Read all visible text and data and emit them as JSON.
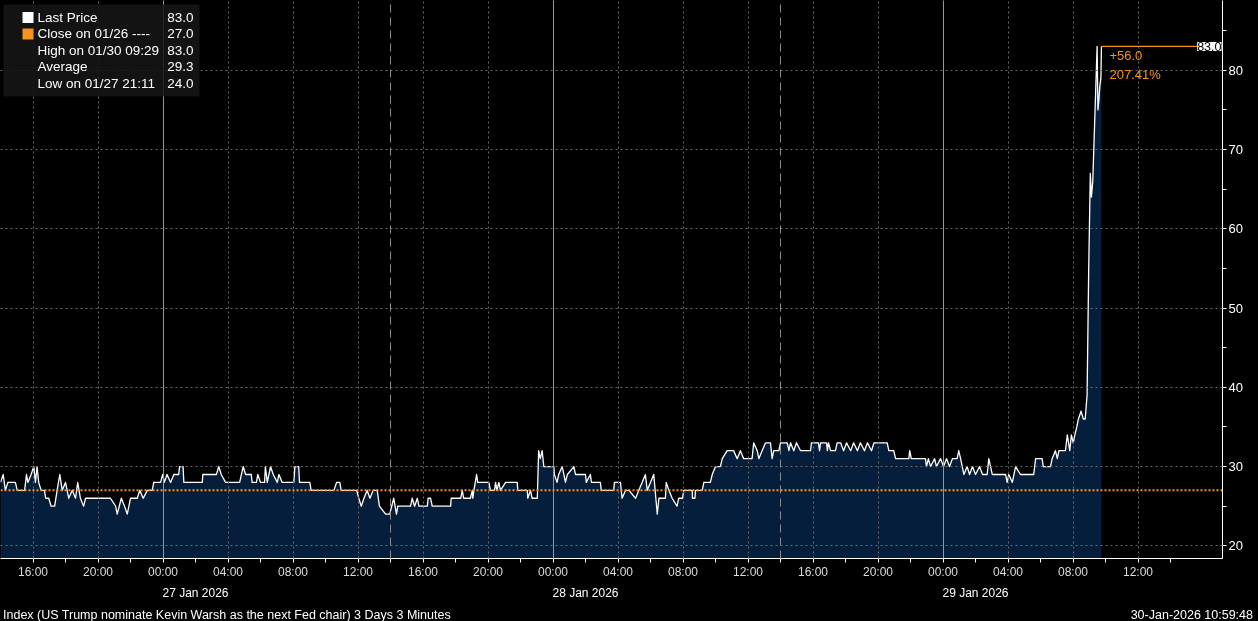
{
  "chart_data": {
    "type": "area",
    "xlim": [
      "2026-01-27T14:00",
      "2026-01-30T17:12"
    ],
    "ylim": [
      18.4,
      88.8
    ],
    "x": [
      "2026-01-27T14:00",
      "2026-01-27T14:10",
      "2026-01-27T14:18",
      "2026-01-27T14:27",
      "2026-01-27T14:55",
      "2026-01-27T15:02",
      "2026-01-27T15:29",
      "2026-01-27T15:36",
      "2026-01-27T15:41",
      "2026-01-27T15:53",
      "2026-01-27T16:03",
      "2026-01-27T16:09",
      "2026-01-27T16:15",
      "2026-01-27T16:21",
      "2026-01-27T16:30",
      "2026-01-27T16:42",
      "2026-01-27T16:47",
      "2026-01-27T16:58",
      "2026-01-27T17:07",
      "2026-01-27T17:20",
      "2026-01-27T17:29",
      "2026-01-27T17:39",
      "2026-01-27T17:48",
      "2026-01-27T18:00",
      "2026-01-27T18:12",
      "2026-01-27T18:25",
      "2026-01-27T18:37",
      "2026-01-27T18:45",
      "2026-01-27T18:55",
      "2026-01-27T19:07",
      "2026-01-27T19:14",
      "2026-01-27T20:46",
      "2026-01-27T21:05",
      "2026-01-27T21:11",
      "2026-01-27T21:26",
      "2026-01-27T21:38",
      "2026-01-27T21:48",
      "2026-01-27T22:00",
      "2026-01-27T22:25",
      "2026-01-27T22:34",
      "2026-01-27T22:47",
      "2026-01-27T23:02",
      "2026-01-27T23:20",
      "2026-01-27T23:26",
      "2026-01-27T23:51",
      "2026-01-27T23:59",
      "2026-01-28T00:05",
      "2026-01-28T00:15",
      "2026-01-28T00:28",
      "2026-01-28T00:40",
      "2026-01-28T00:58",
      "2026-01-28T01:01",
      "2026-01-28T01:14",
      "2026-01-28T01:17",
      "2026-01-28T02:25",
      "2026-01-28T02:27",
      "2026-01-28T03:17",
      "2026-01-28T03:26",
      "2026-01-28T03:35",
      "2026-01-28T03:51",
      "2026-01-28T04:43",
      "2026-01-28T04:56",
      "2026-01-28T05:05",
      "2026-01-28T05:26",
      "2026-01-28T05:29",
      "2026-01-28T05:45",
      "2026-01-28T05:50",
      "2026-01-28T06:00",
      "2026-01-28T06:15",
      "2026-01-28T06:18",
      "2026-01-28T06:25",
      "2026-01-28T06:37",
      "2026-01-28T06:47",
      "2026-01-28T07:02",
      "2026-01-28T07:08",
      "2026-01-28T07:20",
      "2026-01-28T08:03",
      "2026-01-28T08:07",
      "2026-01-28T08:21",
      "2026-01-28T08:24",
      "2026-01-28T09:02",
      "2026-01-28T09:07",
      "2026-01-28T10:31",
      "2026-01-28T10:41",
      "2026-01-28T10:53",
      "2026-01-28T10:58",
      "2026-01-28T11:55",
      "2026-01-28T12:03",
      "2026-01-28T12:12",
      "2026-01-28T12:22",
      "2026-01-28T12:34",
      "2026-01-28T12:44",
      "2026-01-28T12:56",
      "2026-01-28T13:11",
      "2026-01-28T13:19",
      "2026-01-28T13:42",
      "2026-01-28T13:57",
      "2026-01-28T14:12",
      "2026-01-28T14:22",
      "2026-01-28T14:27",
      "2026-01-28T15:14",
      "2026-01-28T15:20",
      "2026-01-28T15:29",
      "2026-01-28T15:39",
      "2026-01-28T15:45",
      "2026-01-28T16:16",
      "2026-01-28T16:19",
      "2026-01-28T16:28",
      "2026-01-28T16:34",
      "2026-01-28T17:42",
      "2026-01-28T17:44",
      "2026-01-28T18:19",
      "2026-01-28T18:25",
      "2026-01-28T18:30",
      "2026-01-28T18:55",
      "2026-01-28T19:02",
      "2026-01-28T19:04",
      "2026-01-28T19:08",
      "2026-01-28T19:18",
      "2026-01-28T19:22",
      "2026-01-28T20:03",
      "2026-01-28T20:09",
      "2026-01-28T20:24",
      "2026-01-28T20:28",
      "2026-01-28T20:33",
      "2026-01-28T20:40",
      "2026-01-28T20:46",
      "2026-01-28T21:05",
      "2026-01-28T21:48",
      "2026-01-28T21:50",
      "2026-01-28T22:25",
      "2026-01-28T22:27",
      "2026-01-28T22:37",
      "2026-01-28T22:43",
      "2026-01-28T23:02",
      "2026-01-28T23:07",
      "2026-01-28T23:13",
      "2026-01-28T23:20",
      "2026-01-28T23:26",
      "2026-01-29T00:03",
      "2026-01-29T00:05",
      "2026-01-29T00:15",
      "2026-01-29T00:21",
      "2026-01-29T00:34",
      "2026-01-29T00:40",
      "2026-01-29T00:46",
      "2026-01-29T00:53",
      "2026-01-29T01:17",
      "2026-01-29T01:23",
      "2026-01-29T02:00",
      "2026-01-29T02:03",
      "2026-01-29T02:18",
      "2026-01-29T02:22",
      "2026-01-29T02:55",
      "2026-01-29T02:58",
      "2026-01-29T03:44",
      "2026-01-29T03:47",
      "2026-01-29T04:09",
      "2026-01-29T04:15",
      "2026-01-29T04:28",
      "2026-01-29T04:40",
      "2026-01-29T05:05",
      "2026-01-29T05:17",
      "2026-01-29T05:29",
      "2026-01-29T05:41",
      "2026-01-29T05:48",
      "2026-01-29T06:12",
      "2026-01-29T06:25",
      "2026-01-29T06:31",
      "2026-01-29T06:55",
      "2026-01-29T06:58",
      "2026-01-29T07:08",
      "2026-01-29T07:20",
      "2026-01-29T07:38",
      "2026-01-29T07:44",
      "2026-01-29T07:58",
      "2026-01-29T08:03",
      "2026-01-29T08:34",
      "2026-01-29T08:35",
      "2026-01-29T08:44",
      "2026-01-29T08:46",
      "2026-01-29T09:11",
      "2026-01-29T09:17",
      "2026-01-29T09:41",
      "2026-01-29T09:48",
      "2026-01-29T10:00",
      "2026-01-29T10:18",
      "2026-01-29T10:25",
      "2026-01-29T10:43",
      "2026-01-29T11:07",
      "2026-01-29T11:20",
      "2026-01-29T11:32",
      "2026-01-29T11:44",
      "2026-01-29T12:15",
      "2026-01-29T12:21",
      "2026-01-29T12:34",
      "2026-01-29T12:40",
      "2026-01-29T12:52",
      "2026-01-29T13:05",
      "2026-01-29T13:23",
      "2026-01-29T13:29",
      "2026-01-29T13:35",
      "2026-01-29T13:54",
      "2026-01-29T14:00",
      "2026-01-29T14:25",
      "2026-01-29T14:31",
      "2026-01-29T14:37",
      "2026-01-29T14:49",
      "2026-01-29T14:59",
      "2026-01-29T15:14",
      "2026-01-29T15:51",
      "2026-01-29T15:54",
      "2026-01-29T16:20",
      "2026-01-29T16:24",
      "2026-01-29T16:28",
      "2026-01-29T16:50",
      "2026-01-29T16:53",
      "2026-01-29T16:57",
      "2026-01-29T17:05",
      "2026-01-29T17:23",
      "2026-01-29T17:29",
      "2026-01-29T17:42",
      "2026-01-29T17:53",
      "2026-01-29T18:04",
      "2026-01-29T18:19",
      "2026-01-29T18:30",
      "2026-01-29T18:44",
      "2026-01-29T18:55",
      "2026-01-29T19:10",
      "2026-01-29T19:21",
      "2026-01-29T19:36",
      "2026-01-29T19:45",
      "2026-01-29T20:34",
      "2026-01-29T20:40",
      "2026-01-29T20:58",
      "2026-01-29T21:05",
      "2026-01-29T21:54",
      "2026-01-29T21:57",
      "2026-01-29T22:03",
      "2026-01-29T22:55",
      "2026-01-29T22:59",
      "2026-01-29T23:06",
      "2026-01-29T23:14",
      "2026-01-29T23:29",
      "2026-01-29T23:36",
      "2026-01-29T23:51",
      "2026-01-30T00:02",
      "2026-01-30T00:13",
      "2026-01-30T00:24",
      "2026-01-30T00:35",
      "2026-01-30T00:52",
      "2026-01-30T00:58",
      "2026-01-30T01:05",
      "2026-01-30T01:17",
      "2026-01-30T01:29",
      "2026-01-30T01:38",
      "2026-01-30T01:49",
      "2026-01-30T02:00",
      "2026-01-30T02:15",
      "2026-01-30T02:26",
      "2026-01-30T02:43",
      "2026-01-30T02:49",
      "2026-01-30T03:02",
      "2026-01-30T03:51",
      "2026-01-30T03:57",
      "2026-01-30T04:03",
      "2026-01-30T04:16",
      "2026-01-30T04:28",
      "2026-01-30T04:46",
      "2026-01-30T05:35",
      "2026-01-30T05:42",
      "2026-01-30T06:06",
      "2026-01-30T06:10",
      "2026-01-30T06:37",
      "2026-01-30T06:43",
      "2026-01-30T06:55",
      "2026-01-30T07:02",
      "2026-01-30T07:08",
      "2026-01-30T07:32",
      "2026-01-30T07:39",
      "2026-01-30T07:48",
      "2026-01-30T07:54",
      "2026-01-30T08:01",
      "2026-01-30T08:07",
      "2026-01-30T08:14",
      "2026-01-30T08:20",
      "2026-01-30T08:30",
      "2026-01-30T08:38",
      "2026-01-30T08:45",
      "2026-01-30T08:52",
      "2026-01-30T08:58",
      "2026-01-30T09:04",
      "2026-01-30T09:08",
      "2026-01-30T09:13",
      "2026-01-30T09:29",
      "2026-01-30T09:32",
      "2026-01-30T09:35",
      "2026-01-30T09:39",
      "2026-01-30T09:43",
      "2026-01-30T09:45"
    ],
    "series": [
      {
        "name": "Last Price",
        "color": "#ffffff",
        "values": [
          28,
          29,
          27,
          28,
          28,
          27,
          27,
          29,
          28,
          29,
          30,
          28,
          30,
          28,
          27,
          27,
          26,
          26,
          25,
          25,
          27,
          29,
          27,
          28,
          26,
          27,
          26,
          28,
          26,
          25,
          26,
          26,
          25,
          24,
          26,
          25,
          24,
          26,
          26,
          27,
          26,
          27,
          27,
          28,
          28,
          29,
          28,
          29,
          28,
          29,
          29,
          30,
          30,
          28,
          28,
          29,
          29,
          30,
          29,
          28,
          28,
          30,
          29,
          29,
          28,
          28,
          29,
          28,
          28,
          30,
          28,
          30,
          29,
          28,
          29,
          28,
          28,
          30,
          30,
          28,
          28,
          27,
          27,
          28,
          28,
          27,
          27,
          26,
          25,
          26,
          27,
          26,
          27,
          27,
          25,
          24,
          24,
          26,
          24,
          25,
          25,
          26,
          25,
          26,
          25,
          25,
          26,
          26,
          25,
          25,
          26,
          26,
          27,
          26,
          26,
          27,
          26,
          27,
          29,
          28,
          28,
          27,
          27,
          28,
          27,
          28,
          27,
          28,
          28,
          27,
          27,
          26,
          27,
          26,
          26,
          32,
          31,
          32,
          30,
          30,
          29,
          28,
          29,
          30,
          29,
          28,
          29,
          30,
          29,
          29,
          28,
          29,
          28,
          28,
          27,
          27,
          28,
          28,
          26,
          27,
          27,
          26,
          27,
          28,
          29,
          27,
          29,
          24,
          26,
          26,
          28,
          27,
          26,
          25,
          26,
          26,
          27,
          27,
          26,
          26,
          27,
          27,
          28,
          28,
          29,
          30,
          30,
          31,
          32,
          32,
          31,
          32,
          31,
          31,
          33,
          32,
          31,
          32,
          33,
          33,
          31,
          32,
          32,
          33,
          33,
          32,
          33,
          32,
          33,
          32,
          32,
          33,
          33,
          32,
          33,
          33,
          32,
          33,
          32,
          32,
          33,
          33,
          32,
          33,
          32,
          33,
          32,
          33,
          32,
          33,
          32,
          33,
          33,
          32,
          32,
          31,
          31,
          32,
          31,
          31,
          30,
          31,
          30,
          31,
          30,
          31,
          30,
          31,
          30,
          31,
          31,
          32,
          31,
          29,
          30,
          29,
          30,
          29,
          30,
          29,
          29,
          31,
          29,
          29,
          28,
          29,
          28,
          30,
          29,
          29,
          31,
          31,
          30,
          30,
          31,
          32,
          31,
          32,
          32,
          34,
          32,
          34,
          33,
          34,
          35,
          36,
          37,
          36,
          36,
          39,
          55,
          67,
          64,
          66,
          83,
          75,
          76,
          78,
          79,
          83
        ]
      }
    ],
    "xticks": [
      {
        "value": "2026-01-27T16:00",
        "label": "16:00"
      },
      {
        "value": "2026-01-27T18:00",
        "label": null
      },
      {
        "value": "2026-01-27T20:00",
        "label": "20:00"
      },
      {
        "value": "2026-01-27T22:00",
        "label": null
      },
      {
        "value": "2026-01-28T00:00",
        "label": "00:00"
      },
      {
        "value": "2026-01-28T02:00",
        "label": null
      },
      {
        "value": "2026-01-28T04:00",
        "label": "04:00"
      },
      {
        "value": "2026-01-28T06:00",
        "label": null
      },
      {
        "value": "2026-01-28T08:00",
        "label": "08:00"
      },
      {
        "value": "2026-01-28T10:00",
        "label": null
      },
      {
        "value": "2026-01-28T12:00",
        "label": "12:00"
      },
      {
        "value": "2026-01-28T14:00",
        "label": null
      },
      {
        "value": "2026-01-28T16:00",
        "label": "16:00"
      },
      {
        "value": "2026-01-28T18:00",
        "label": null
      },
      {
        "value": "2026-01-28T20:00",
        "label": "20:00"
      },
      {
        "value": "2026-01-28T22:00",
        "label": null
      },
      {
        "value": "2026-01-29T00:00",
        "label": "00:00"
      },
      {
        "value": "2026-01-29T02:00",
        "label": null
      },
      {
        "value": "2026-01-29T04:00",
        "label": "04:00"
      },
      {
        "value": "2026-01-29T06:00",
        "label": null
      },
      {
        "value": "2026-01-29T08:00",
        "label": "08:00"
      },
      {
        "value": "2026-01-29T10:00",
        "label": null
      },
      {
        "value": "2026-01-29T12:00",
        "label": "12:00"
      },
      {
        "value": "2026-01-29T14:00",
        "label": null
      },
      {
        "value": "2026-01-29T16:00",
        "label": "16:00"
      },
      {
        "value": "2026-01-29T18:00",
        "label": null
      },
      {
        "value": "2026-01-29T20:00",
        "label": "20:00"
      },
      {
        "value": "2026-01-29T22:00",
        "label": null
      },
      {
        "value": "2026-01-30T00:00",
        "label": "00:00"
      },
      {
        "value": "2026-01-30T02:00",
        "label": null
      },
      {
        "value": "2026-01-30T04:00",
        "label": "04:00"
      },
      {
        "value": "2026-01-30T06:00",
        "label": null
      },
      {
        "value": "2026-01-30T08:00",
        "label": "08:00"
      },
      {
        "value": "2026-01-30T10:00",
        "label": null
      },
      {
        "value": "2026-01-30T12:00",
        "label": "12:00"
      },
      {
        "value": "2026-01-30T14:00",
        "label": null
      }
    ],
    "yticks": [
      20,
      {
        "value": 25,
        "label": null
      },
      30,
      {
        "value": 35,
        "label": null
      },
      40,
      {
        "value": 45,
        "label": null
      },
      50,
      {
        "value": 55,
        "label": null
      },
      60,
      {
        "value": 65,
        "label": null
      },
      70,
      {
        "value": 75,
        "label": null
      },
      80,
      {
        "value": 85,
        "label": null
      }
    ],
    "x2lim": [
      "2026-01-27T00:00",
      "2026-01-30T03:12"
    ],
    "x2ticks": [
      {
        "value": "2026-01-27T00:00",
        "label": null
      },
      {
        "value": "2026-01-27T12:00",
        "label": "27 Jan 2026"
      },
      {
        "value": "2026-01-28T00:00",
        "label": null
      },
      {
        "value": "2026-01-28T12:00",
        "label": "28 Jan 2026"
      },
      {
        "value": "2026-01-29T00:00",
        "label": null
      },
      {
        "value": "2026-01-29T12:00",
        "label": "29 Jan 2026"
      }
    ],
    "ref_lines": [
      {
        "axis": "y",
        "value": 27,
        "label": "Close on 01/26 ----",
        "color": "#f7941d",
        "line_style": "dotted"
      }
    ],
    "annotations": [
      "83.0",
      "27.0",
      "High on 01/30 09:29",
      "83.0",
      "Average",
      "29.3",
      "Low on 01/27 21:11",
      "24.0",
      {
        "text": "83.0",
        "x": "2026-01-30T09:45",
        "y": 83
      },
      {
        "text": "+56.0",
        "x": "2026-01-30T09:45",
        "y": 83
      },
      {
        "text": "207.41%",
        "x": "2026-01-30T09:45",
        "y": 83
      },
      "Index (US Trump nominate Kevin Warsh as the next Fed chair) 3 Days 3 Minutes",
      "30-Jan-2026 10:59:48"
    ],
    "grid": true,
    "legend": "top left"
  }
}
